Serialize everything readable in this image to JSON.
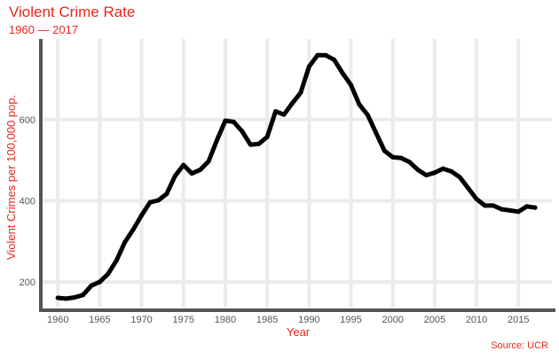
{
  "chart_data": {
    "type": "line",
    "title": "Violent Crime Rate",
    "subtitle": "1960 — 2017",
    "xlabel": "Year",
    "ylabel": "Violent Crimes per 100,000 pop.",
    "caption": "Source: UCR",
    "xlim": [
      1958.6,
      2019.0
    ],
    "ylim": [
      137,
      798
    ],
    "x_ticks": [
      1960,
      1965,
      1970,
      1975,
      1980,
      1985,
      1990,
      1995,
      2000,
      2005,
      2010,
      2015
    ],
    "y_ticks": [
      200,
      400,
      600
    ],
    "grid": true,
    "line_color": "#000000",
    "accent_color": "#e8261f",
    "x": [
      1960,
      1961,
      1962,
      1963,
      1964,
      1965,
      1966,
      1967,
      1968,
      1969,
      1970,
      1971,
      1972,
      1973,
      1974,
      1975,
      1976,
      1977,
      1978,
      1979,
      1980,
      1981,
      1982,
      1983,
      1984,
      1985,
      1986,
      1987,
      1988,
      1989,
      1990,
      1991,
      1992,
      1993,
      1994,
      1995,
      1996,
      1997,
      1998,
      1999,
      2000,
      2001,
      2002,
      2003,
      2004,
      2005,
      2006,
      2007,
      2008,
      2009,
      2010,
      2011,
      2012,
      2013,
      2014,
      2015,
      2016,
      2017
    ],
    "y": [
      161,
      159,
      162,
      168,
      191,
      200,
      220,
      253,
      298,
      329,
      364,
      396,
      401,
      417,
      461,
      488,
      467,
      476,
      497,
      549,
      597,
      594,
      571,
      538,
      540,
      557,
      620,
      612,
      640,
      666,
      730,
      758,
      758,
      747,
      714,
      685,
      637,
      611,
      567,
      523,
      507,
      505,
      495,
      476,
      463,
      469,
      479,
      472,
      458,
      431,
      404,
      388,
      388,
      379,
      376,
      373,
      386,
      383
    ]
  }
}
